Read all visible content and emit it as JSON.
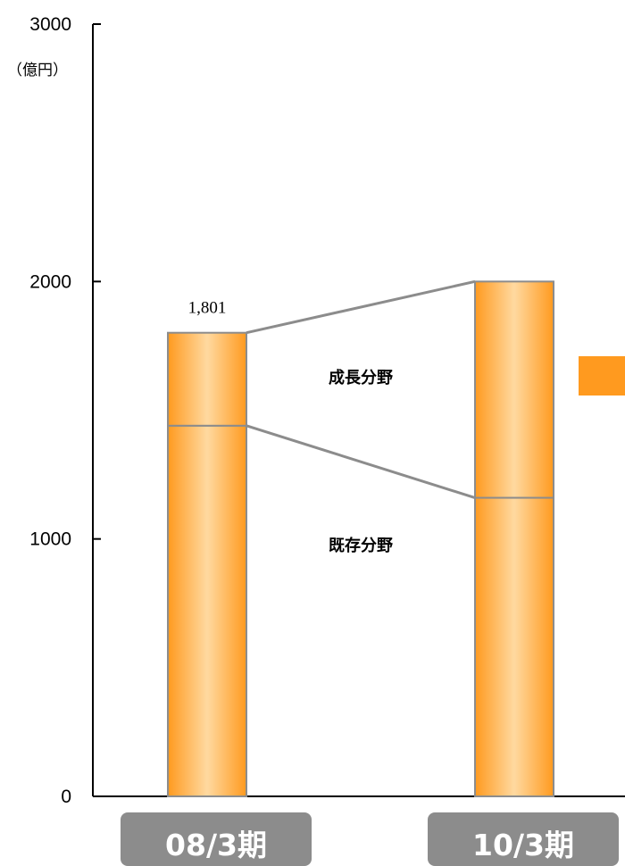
{
  "chart_data": {
    "type": "bar",
    "stacked": true,
    "y_unit": "（億円）",
    "ylim": [
      0,
      3000
    ],
    "y_ticks": [
      "0",
      "1000",
      "2000",
      "3000"
    ],
    "categories": [
      "08/3期",
      "10/3期"
    ],
    "series": [
      {
        "name": "既存分野",
        "values": [
          1440,
          1160
        ]
      },
      {
        "name": "成長分野",
        "values": [
          361,
          840
        ]
      }
    ],
    "totals": [
      1801,
      2000
    ],
    "total_labels": [
      "1,801",
      ""
    ],
    "segment_labels": [
      "成長分野",
      "既存分野"
    ],
    "colors": {
      "bar_edge": "#ff9a1f",
      "bar_center": "#ffd9a0",
      "outline": "#8c8c8c",
      "category_box": "#8c8c8c",
      "arrow": "#ff9a1f"
    }
  }
}
